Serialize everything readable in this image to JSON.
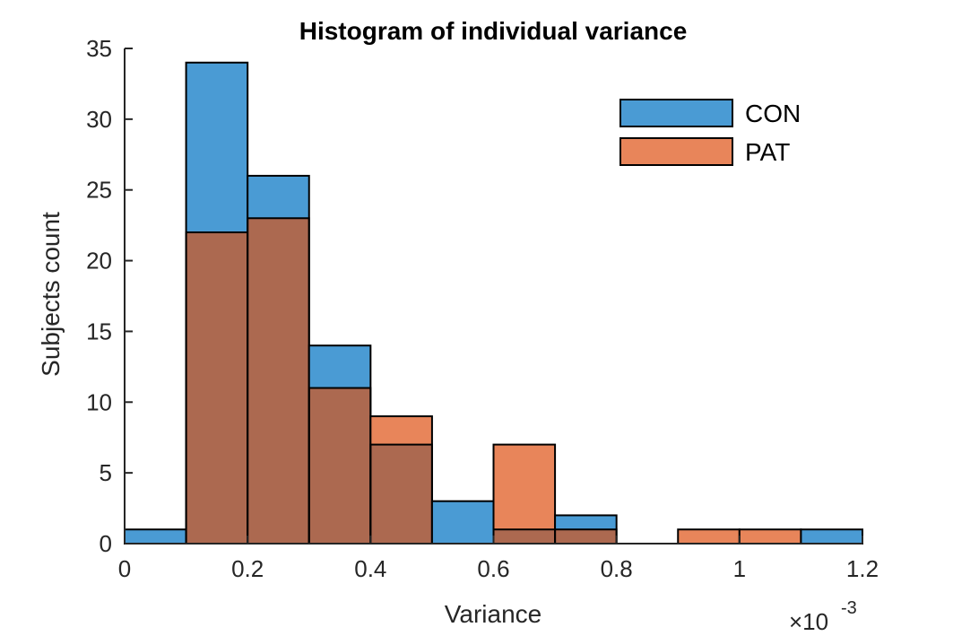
{
  "chart_data": {
    "type": "bar",
    "title": "Histogram of individual variance",
    "xlabel": "Variance",
    "ylabel": "Subjects count",
    "x_exponent_label": "×10",
    "x_exponent": "-3",
    "xlim": [
      0,
      1.2
    ],
    "ylim": [
      0,
      35
    ],
    "xticks": [
      "0",
      "0.2",
      "0.4",
      "0.6",
      "0.8",
      "1",
      "1.2"
    ],
    "yticks": [
      "0",
      "5",
      "10",
      "15",
      "20",
      "25",
      "30",
      "35"
    ],
    "bin_edges": [
      0,
      0.1,
      0.2,
      0.3,
      0.4,
      0.5,
      0.6,
      0.7,
      0.8,
      0.9,
      1.0,
      1.1,
      1.2
    ],
    "grid": false,
    "legend_position": "top-right",
    "series": [
      {
        "name": "CON",
        "color": "#4a9bd4",
        "values": [
          1,
          34,
          26,
          14,
          7,
          3,
          1,
          2,
          0,
          0,
          0,
          1
        ]
      },
      {
        "name": "PAT",
        "color": "#e8855a",
        "values": [
          0,
          22,
          23,
          11,
          9,
          0,
          7,
          1,
          0,
          1,
          1,
          0
        ]
      }
    ],
    "overlap_color": "#ac6950"
  }
}
